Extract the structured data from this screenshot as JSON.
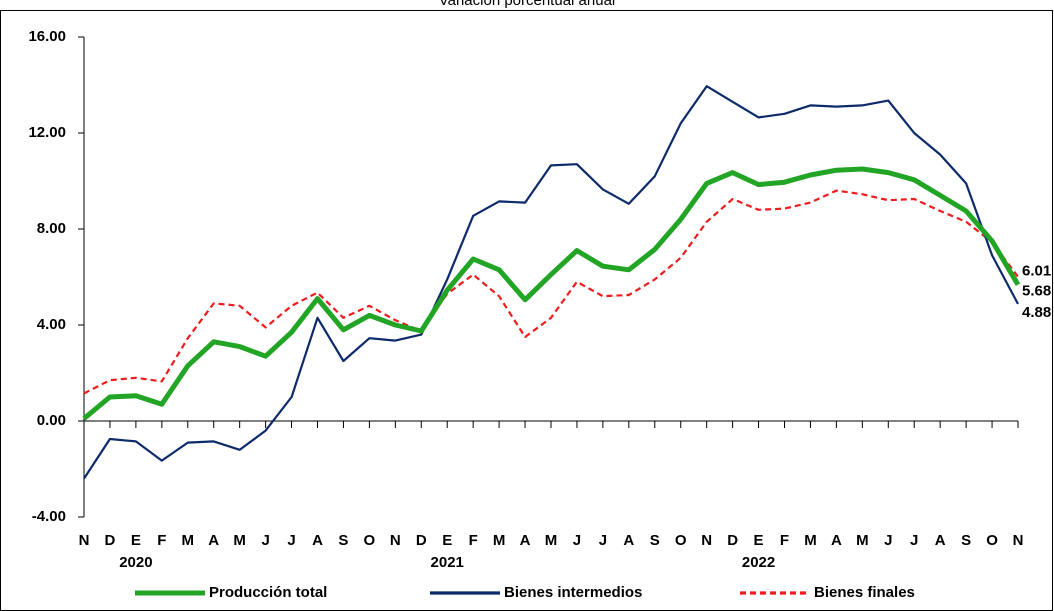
{
  "chart_data": {
    "type": "line",
    "title": "Variación porcentual anual",
    "categories": [
      "N",
      "D",
      "E",
      "F",
      "M",
      "A",
      "M",
      "J",
      "J",
      "A",
      "S",
      "O",
      "N",
      "D",
      "E",
      "F",
      "M",
      "A",
      "M",
      "J",
      "J",
      "A",
      "S",
      "O",
      "N",
      "D",
      "E",
      "F",
      "M",
      "A",
      "M",
      "J",
      "J",
      "A",
      "S",
      "O",
      "N"
    ],
    "years": [
      null,
      null,
      "2020",
      null,
      null,
      null,
      null,
      null,
      null,
      null,
      null,
      null,
      null,
      null,
      "2021",
      null,
      null,
      null,
      null,
      null,
      null,
      null,
      null,
      null,
      null,
      null,
      "2022",
      null,
      null,
      null,
      null,
      null,
      null,
      null,
      null,
      null,
      null
    ],
    "ylim": [
      -4,
      16
    ],
    "yticks": [
      {
        "value": -4,
        "label": "-4.00"
      },
      {
        "value": 0,
        "label": "0.00"
      },
      {
        "value": 4,
        "label": "4.00"
      },
      {
        "value": 8,
        "label": "8.00"
      },
      {
        "value": 12,
        "label": "12.00"
      },
      {
        "value": 16,
        "label": "16.00"
      }
    ],
    "grid": false,
    "legend": "bottom",
    "series": [
      {
        "name": "Producción total",
        "color": "#22a424",
        "dash": false,
        "values": [
          0.1,
          1.0,
          1.05,
          0.7,
          2.3,
          3.3,
          3.1,
          2.7,
          3.7,
          5.1,
          3.8,
          4.4,
          4.0,
          3.75,
          5.45,
          6.75,
          6.3,
          5.05,
          6.1,
          7.1,
          6.45,
          6.3,
          7.15,
          8.4,
          9.9,
          10.35,
          9.85,
          9.95,
          10.25,
          10.45,
          10.5,
          10.35,
          10.05,
          9.4,
          8.75,
          7.5,
          5.68
        ],
        "value_labels": [
          null,
          null,
          null,
          null,
          null,
          null,
          null,
          null,
          null,
          null,
          null,
          null,
          null,
          null,
          null,
          null,
          null,
          null,
          null,
          null,
          null,
          null,
          null,
          null,
          null,
          null,
          null,
          null,
          null,
          null,
          null,
          null,
          null,
          null,
          null,
          null,
          "5.68"
        ]
      },
      {
        "name": "Bienes intermedios",
        "color": "#0d2a6b",
        "dash": false,
        "values": [
          -2.4,
          -0.75,
          -0.85,
          -1.65,
          -0.9,
          -0.85,
          -1.2,
          -0.4,
          1.0,
          4.3,
          2.5,
          3.45,
          3.35,
          3.6,
          5.9,
          8.55,
          9.15,
          9.1,
          10.65,
          10.7,
          9.65,
          9.05,
          10.2,
          12.4,
          13.95,
          13.3,
          12.65,
          12.8,
          13.15,
          13.1,
          13.15,
          13.35,
          12.0,
          11.1,
          9.9,
          6.9,
          4.88
        ],
        "value_labels": [
          null,
          null,
          null,
          null,
          null,
          null,
          null,
          null,
          null,
          null,
          null,
          null,
          null,
          null,
          null,
          null,
          null,
          null,
          null,
          null,
          null,
          null,
          null,
          null,
          null,
          null,
          null,
          null,
          null,
          null,
          null,
          null,
          null,
          null,
          null,
          null,
          "4.88"
        ]
      },
      {
        "name": "Bienes finales",
        "color": "#ee1c1c",
        "dash": true,
        "values": [
          1.15,
          1.7,
          1.8,
          1.65,
          3.45,
          4.9,
          4.8,
          3.9,
          4.8,
          5.35,
          4.3,
          4.8,
          4.2,
          3.75,
          5.3,
          6.1,
          5.2,
          3.5,
          4.3,
          5.8,
          5.2,
          5.25,
          5.9,
          6.8,
          8.3,
          9.25,
          8.8,
          8.85,
          9.1,
          9.6,
          9.45,
          9.2,
          9.25,
          8.75,
          8.3,
          7.45,
          6.01
        ],
        "value_labels": [
          null,
          null,
          null,
          null,
          null,
          null,
          null,
          null,
          null,
          null,
          null,
          null,
          null,
          null,
          null,
          null,
          null,
          null,
          null,
          null,
          null,
          null,
          null,
          null,
          null,
          null,
          null,
          null,
          null,
          null,
          null,
          null,
          null,
          null,
          null,
          null,
          "6.01"
        ]
      }
    ]
  }
}
